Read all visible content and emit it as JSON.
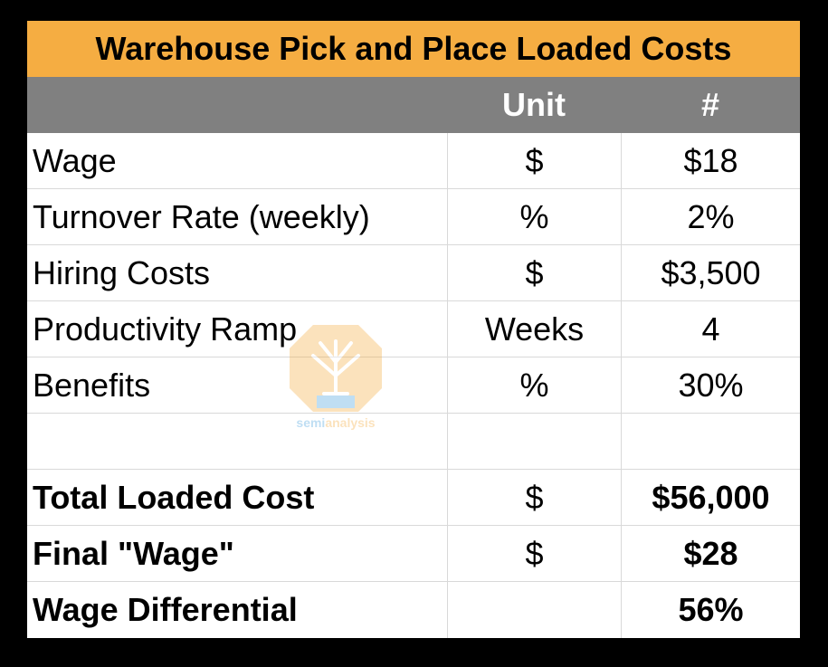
{
  "title": "Warehouse Pick and Place Loaded Costs",
  "header": {
    "label": "",
    "unit": "Unit",
    "value": "#"
  },
  "rows": [
    {
      "label": "Wage",
      "unit": "$",
      "value": "$18"
    },
    {
      "label": "Turnover Rate (weekly)",
      "unit": "%",
      "value": "2%"
    },
    {
      "label": "Hiring Costs",
      "unit": "$",
      "value": "$3,500"
    },
    {
      "label": "Productivity Ramp",
      "unit": "Weeks",
      "value": "4"
    },
    {
      "label": "Benefits",
      "unit": "%",
      "value": "30%"
    },
    {
      "label": "",
      "unit": "",
      "value": ""
    },
    {
      "label": "Total Loaded Cost",
      "unit": "$",
      "value": "$56,000"
    },
    {
      "label": "Final \"Wage\"",
      "unit": "$",
      "value": "$28"
    },
    {
      "label": "Wage Differential",
      "unit": "",
      "value": "56%"
    }
  ],
  "watermark": {
    "text_part1": "semi",
    "text_part2": "analysis"
  },
  "colors": {
    "title_bg": "#f5ad42",
    "header_bg": "#808080",
    "frame": "#000000"
  }
}
